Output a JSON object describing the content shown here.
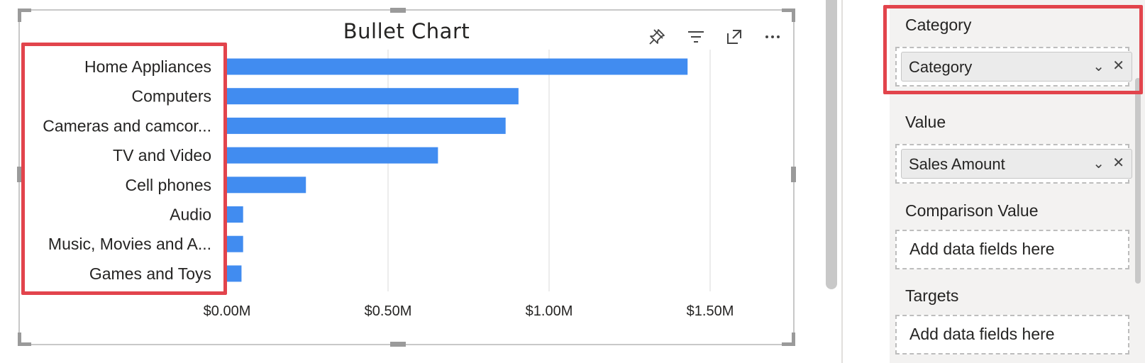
{
  "visual": {
    "title": "Bullet Chart",
    "header_icons": [
      "pin-icon",
      "filter-icon",
      "focus-mode-icon",
      "more-options-icon"
    ]
  },
  "chart_data": {
    "type": "bar",
    "title": "Bullet Chart",
    "orientation": "horizontal",
    "categories": [
      "Home Appliances",
      "Computers",
      "Cameras and camcor...",
      "TV and Video",
      "Cell phones",
      "Audio",
      "Music, Movies and A...",
      "Games and Toys"
    ],
    "values": [
      1.43,
      0.905,
      0.865,
      0.655,
      0.245,
      0.05,
      0.05,
      0.045
    ],
    "value_unit": "M",
    "xlim": [
      0,
      1.6
    ],
    "xticks": [
      0,
      0.5,
      1.0,
      1.5
    ],
    "xtick_labels": [
      "$0.00M",
      "$0.50M",
      "$1.00M",
      "$1.50M"
    ],
    "grid": true,
    "bar_color": "#418cf0",
    "xlabel": "",
    "ylabel": ""
  },
  "fields_pane": {
    "category": {
      "title": "Category",
      "field": "Category"
    },
    "value": {
      "title": "Value",
      "field": "Sales Amount"
    },
    "comparison": {
      "title": "Comparison Value",
      "placeholder": "Add data fields here"
    },
    "targets": {
      "title": "Targets",
      "placeholder": "Add data fields here"
    }
  },
  "colors": {
    "highlight": "#e2444c",
    "pane_bg": "#f3f2f1"
  }
}
